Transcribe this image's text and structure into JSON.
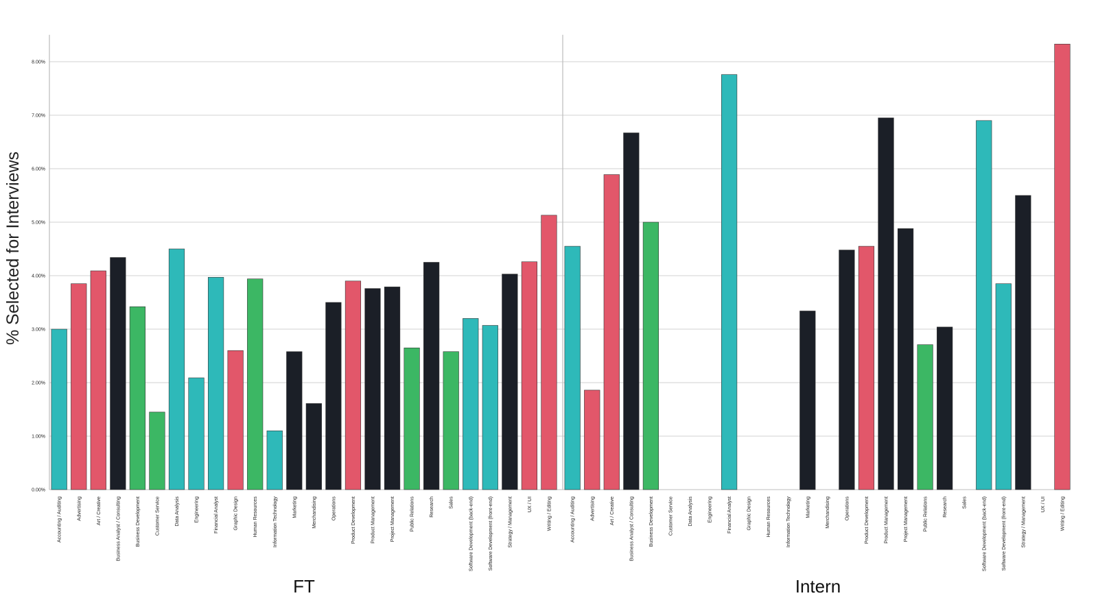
{
  "chart_data": {
    "type": "bar",
    "ylabel": "% Selected for Interviews",
    "ylim": [
      0,
      8.4
    ],
    "yticks": [
      "0.00%",
      "1.00%",
      "2.00%",
      "3.00%",
      "4.00%",
      "5.00%",
      "6.00%",
      "7.00%",
      "8.00%"
    ],
    "grid": true,
    "categories": [
      "Accounting / Auditing",
      "Advertising",
      "Art / Creative",
      "Business Analyst / Consulting",
      "Business Development",
      "Customer Service",
      "Data Analysis",
      "Engineering",
      "Financial Analyst",
      "Graphic Design",
      "Human Resources",
      "Information Technology",
      "Marketing",
      "Merchandising",
      "Operations",
      "Product Development",
      "Product Management",
      "Project Management",
      "Public Relations",
      "Research",
      "Sales",
      "Software Development (back-end)",
      "Software Development (front-end)",
      "Strategy / Management",
      "UX / UI",
      "Writing / Editing"
    ],
    "colors": [
      "#2eb9b9",
      "#e2576a",
      "#e2576a",
      "#1b1f27",
      "#3cb764",
      "#3cb764",
      "#2eb9b9",
      "#2eb9b9",
      "#2eb9b9",
      "#e2576a",
      "#3cb764",
      "#2eb9b9",
      "#1b1f27",
      "#1b1f27",
      "#1b1f27",
      "#e2576a",
      "#1b1f27",
      "#1b1f27",
      "#3cb764",
      "#1b1f27",
      "#3cb764",
      "#2eb9b9",
      "#2eb9b9",
      "#1b1f27",
      "#e2576a",
      "#e2576a"
    ],
    "panels": [
      {
        "title": "FT",
        "values": [
          3.0,
          3.85,
          4.09,
          4.34,
          3.42,
          1.45,
          4.5,
          2.09,
          3.97,
          2.6,
          3.94,
          1.1,
          2.58,
          1.61,
          3.5,
          3.9,
          3.76,
          3.79,
          2.65,
          4.25,
          2.58,
          3.2,
          3.07,
          4.03,
          4.26,
          5.13
        ]
      },
      {
        "title": "Intern",
        "values": [
          4.55,
          1.86,
          5.89,
          6.67,
          5.0,
          0,
          0,
          0,
          7.76,
          0,
          0,
          0,
          3.34,
          0,
          4.48,
          4.55,
          6.95,
          4.88,
          2.71,
          3.04,
          0,
          6.9,
          3.85,
          5.5,
          0,
          8.33
        ]
      }
    ]
  }
}
